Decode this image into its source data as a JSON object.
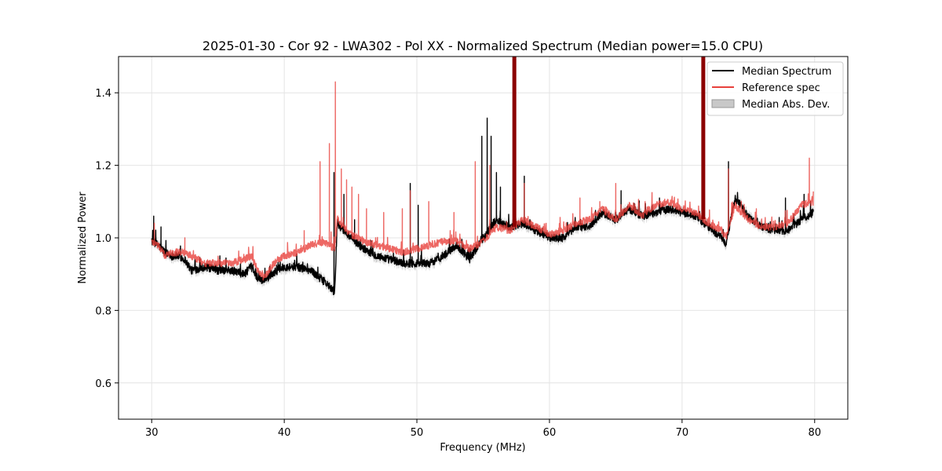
{
  "chart_data": {
    "type": "line",
    "title": "2025-01-30 - Cor 92 - LWA302 - Pol XX - Normalized Spectrum (Median power=15.0 CPU)",
    "xlabel": "Frequency (MHz)",
    "ylabel": "Normalized Power",
    "xlim": [
      27.5,
      82.5
    ],
    "ylim": [
      0.5,
      1.5
    ],
    "xticks": [
      30,
      40,
      50,
      60,
      70,
      80
    ],
    "yticks": [
      0.6,
      0.8,
      1.0,
      1.2,
      1.4
    ],
    "xtick_labels": [
      "30",
      "40",
      "50",
      "60",
      "70",
      "80"
    ],
    "ytick_labels": [
      "0.6",
      "0.8",
      "1.0",
      "1.2",
      "1.4"
    ],
    "grid": true,
    "legend_position": "top-right",
    "legend": [
      "Median Spectrum",
      "Reference spec",
      "Median Abs. Dev."
    ],
    "colors": {
      "median": "#000000",
      "reference": "#e8413c",
      "reference_dark": "#8b0000",
      "mad_fill": "#c8c8c8"
    },
    "series": [
      {
        "name": "Median Spectrum",
        "baseline": {
          "x": [
            30,
            30.5,
            31,
            31.5,
            32,
            32.5,
            33,
            34,
            35,
            36,
            37,
            37.5,
            38,
            38.5,
            39,
            39.5,
            40,
            41,
            42,
            43,
            43.8,
            44,
            44.5,
            45,
            46,
            47,
            48,
            49,
            50,
            51,
            52,
            53,
            54,
            55,
            56,
            57,
            58,
            59,
            60,
            61,
            62,
            63,
            64,
            65,
            66,
            67,
            68,
            69,
            70,
            71,
            72,
            73,
            73.3,
            74,
            75,
            76,
            77,
            78,
            79,
            79.9
          ],
          "y": [
            0.99,
            0.98,
            0.96,
            0.95,
            0.95,
            0.94,
            0.91,
            0.92,
            0.91,
            0.91,
            0.9,
            0.92,
            0.89,
            0.88,
            0.9,
            0.91,
            0.92,
            0.92,
            0.91,
            0.88,
            0.85,
            1.04,
            1.02,
            1.0,
            0.97,
            0.95,
            0.94,
            0.93,
            0.93,
            0.93,
            0.95,
            0.98,
            0.94,
            1.0,
            1.05,
            1.03,
            1.04,
            1.02,
            1.0,
            1.0,
            1.03,
            1.03,
            1.07,
            1.05,
            1.08,
            1.06,
            1.07,
            1.08,
            1.07,
            1.06,
            1.03,
            1.0,
            0.98,
            1.11,
            1.06,
            1.03,
            1.02,
            1.02,
            1.05,
            1.07
          ]
        },
        "spikes": [
          [
            30.15,
            1.06
          ],
          [
            30.7,
            1.03
          ],
          [
            43.75,
            1.18
          ],
          [
            44.5,
            1.12
          ],
          [
            45.3,
            1.05
          ],
          [
            49.5,
            1.15
          ],
          [
            50.1,
            1.09
          ],
          [
            54.9,
            1.28
          ],
          [
            55.3,
            1.33
          ],
          [
            55.6,
            1.28
          ],
          [
            56.0,
            1.18
          ],
          [
            56.3,
            1.14
          ],
          [
            57.35,
            1.5
          ],
          [
            58.1,
            1.17
          ],
          [
            65.4,
            1.13
          ],
          [
            68.3,
            1.11
          ],
          [
            71.6,
            1.5
          ],
          [
            73.5,
            1.21
          ],
          [
            77.8,
            1.11
          ],
          [
            79.2,
            1.12
          ]
        ]
      },
      {
        "name": "Reference spec",
        "baseline": {
          "x": [
            30,
            30.5,
            31,
            31.5,
            32,
            32.5,
            33,
            34,
            35,
            36,
            37,
            37.5,
            38,
            38.5,
            39,
            39.5,
            40,
            41,
            42,
            43,
            43.8,
            44,
            44.5,
            45,
            46,
            47,
            48,
            49,
            50,
            51,
            52,
            53,
            54,
            55,
            56,
            57,
            58,
            59,
            60,
            61,
            62,
            63,
            64,
            65,
            66,
            67,
            68,
            69,
            70,
            71,
            72,
            73,
            73.3,
            74,
            75,
            76,
            77,
            78,
            79,
            79.9
          ],
          "y": [
            0.99,
            0.98,
            0.95,
            0.96,
            0.96,
            0.96,
            0.95,
            0.93,
            0.93,
            0.93,
            0.94,
            0.95,
            0.91,
            0.89,
            0.92,
            0.94,
            0.95,
            0.96,
            0.98,
            0.99,
            0.97,
            1.05,
            1.03,
            1.01,
            0.99,
            0.98,
            0.97,
            0.96,
            0.97,
            0.98,
            0.99,
            0.99,
            0.97,
            0.99,
            1.03,
            1.02,
            1.05,
            1.03,
            1.01,
            1.02,
            1.04,
            1.05,
            1.08,
            1.05,
            1.09,
            1.06,
            1.09,
            1.1,
            1.08,
            1.07,
            1.04,
            1.02,
            1.0,
            1.09,
            1.05,
            1.03,
            1.03,
            1.04,
            1.09,
            1.1
          ]
        },
        "spikes": [
          [
            30.2,
            1.04
          ],
          [
            32.5,
            1.0
          ],
          [
            41.5,
            1.02
          ],
          [
            42.7,
            1.21
          ],
          [
            43.4,
            1.26
          ],
          [
            43.85,
            1.43
          ],
          [
            44.3,
            1.19
          ],
          [
            44.7,
            1.16
          ],
          [
            45.1,
            1.14
          ],
          [
            45.6,
            1.12
          ],
          [
            46.2,
            1.08
          ],
          [
            47.5,
            1.07
          ],
          [
            48.9,
            1.08
          ],
          [
            49.5,
            1.13
          ],
          [
            50.9,
            1.1
          ],
          [
            52.8,
            1.07
          ],
          [
            54.4,
            1.21
          ],
          [
            55.5,
            1.2
          ],
          [
            57.35,
            1.5
          ],
          [
            58.1,
            1.15
          ],
          [
            62.3,
            1.11
          ],
          [
            63.8,
            1.1
          ],
          [
            65.0,
            1.15
          ],
          [
            71.6,
            1.5
          ],
          [
            73.5,
            1.19
          ],
          [
            75.6,
            1.08
          ],
          [
            79.6,
            1.22
          ]
        ]
      },
      {
        "name": "Median Abs. Dev.",
        "type": "band",
        "half_width": 0.012
      }
    ]
  }
}
